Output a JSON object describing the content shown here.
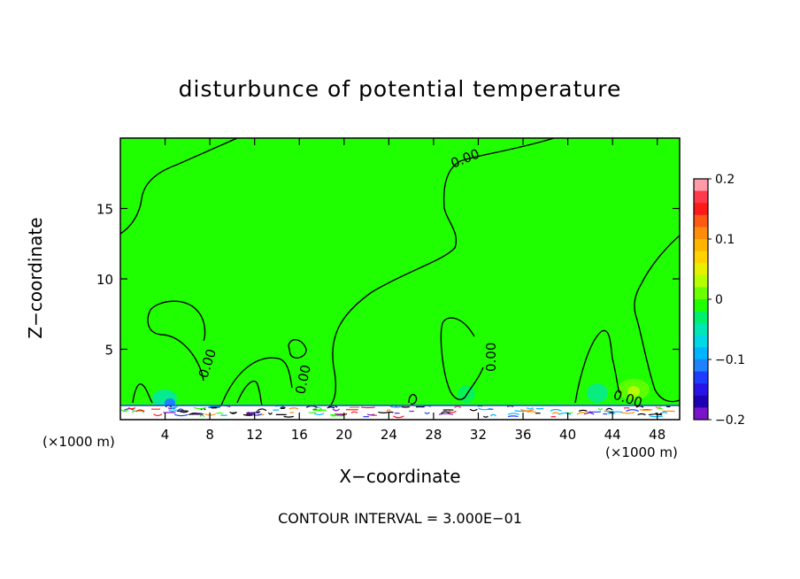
{
  "chart_data": {
    "type": "heatmap",
    "title": "disturbunce of potential temperature",
    "xlabel": "X−coordinate",
    "ylabel": "Z−coordinate",
    "x_unit": "(×1000 m)",
    "x_ticks": [
      4,
      8,
      12,
      16,
      20,
      24,
      28,
      32,
      36,
      40,
      44,
      48
    ],
    "y_ticks": [
      5,
      10,
      15
    ],
    "xlim": [
      0,
      50
    ],
    "ylim": [
      0,
      20
    ],
    "colorbar": {
      "ticks": [
        {
          "value": 0.2,
          "label": "0.2"
        },
        {
          "value": 0.1,
          "label": "0.1"
        },
        {
          "value": 0,
          "label": "0"
        },
        {
          "value": -0.1,
          "label": "−0.1"
        },
        {
          "value": -0.2,
          "label": "−0.2"
        }
      ],
      "colors": [
        "#ff9aa8",
        "#ff3a4a",
        "#ff1a1a",
        "#ff5a14",
        "#ff8c0a",
        "#ffb400",
        "#ffd200",
        "#e6f000",
        "#b4ff00",
        "#6cff00",
        "#20ff00",
        "#00f06e",
        "#00e6b4",
        "#00d8e8",
        "#00b4ff",
        "#1e82ff",
        "#1e3cff",
        "#2814e6",
        "#1e00b4",
        "#7a14c8"
      ]
    },
    "contour_label": "0.00",
    "contour_interval_text": "CONTOUR INTERVAL = 3.000E−01"
  }
}
